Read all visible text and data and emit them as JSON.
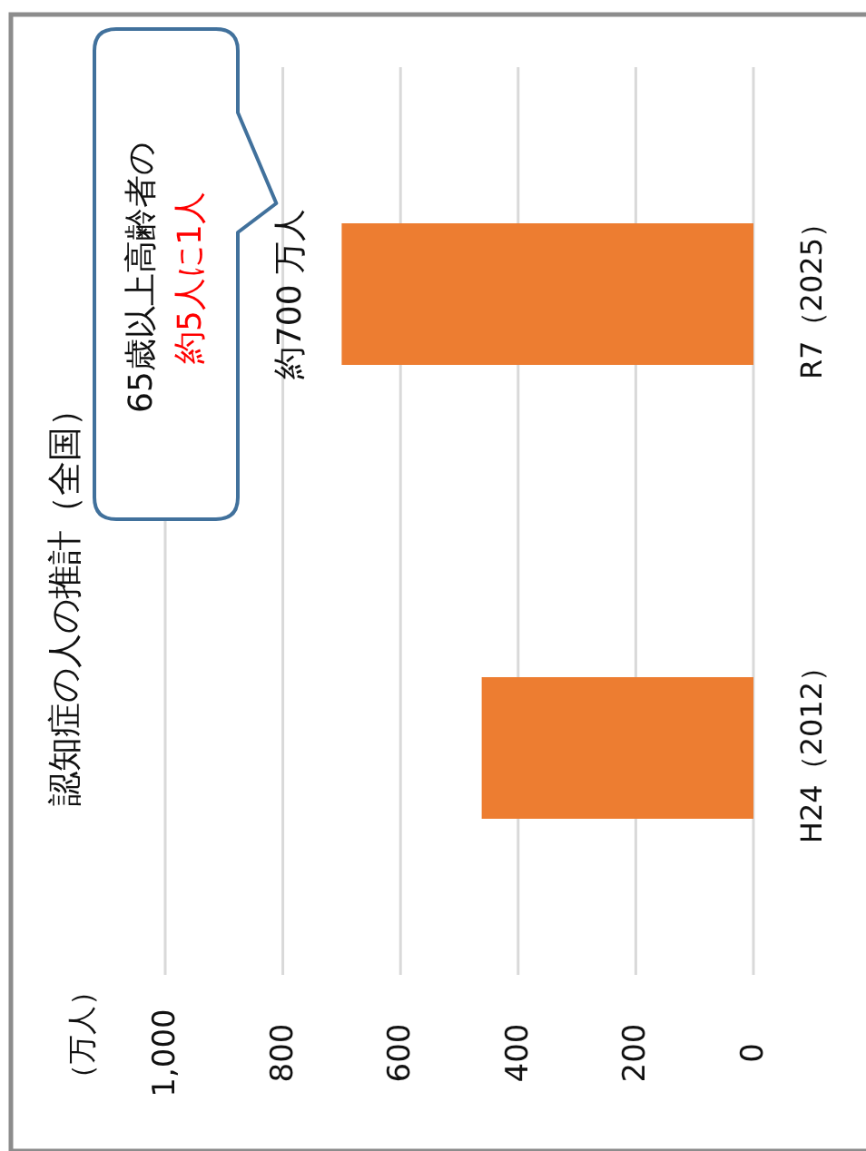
{
  "chart_data": {
    "type": "bar",
    "orientation": "horizontal",
    "title": "認知症の人の推計（全国）",
    "categories": [
      "R7（2025）",
      "H24（2012）"
    ],
    "values": [
      700,
      462
    ],
    "color": "#ed7d31",
    "value_labels": [
      "約700 万人",
      null
    ],
    "xlim": [
      1000,
      0
    ],
    "xticks": [
      {
        "value": 1000,
        "label": "1,000"
      },
      800,
      600,
      400,
      200,
      0
    ],
    "grid": "x",
    "annotations": [
      "（万人）",
      "65歳以上高齢者の",
      "約5人に1人"
    ]
  }
}
